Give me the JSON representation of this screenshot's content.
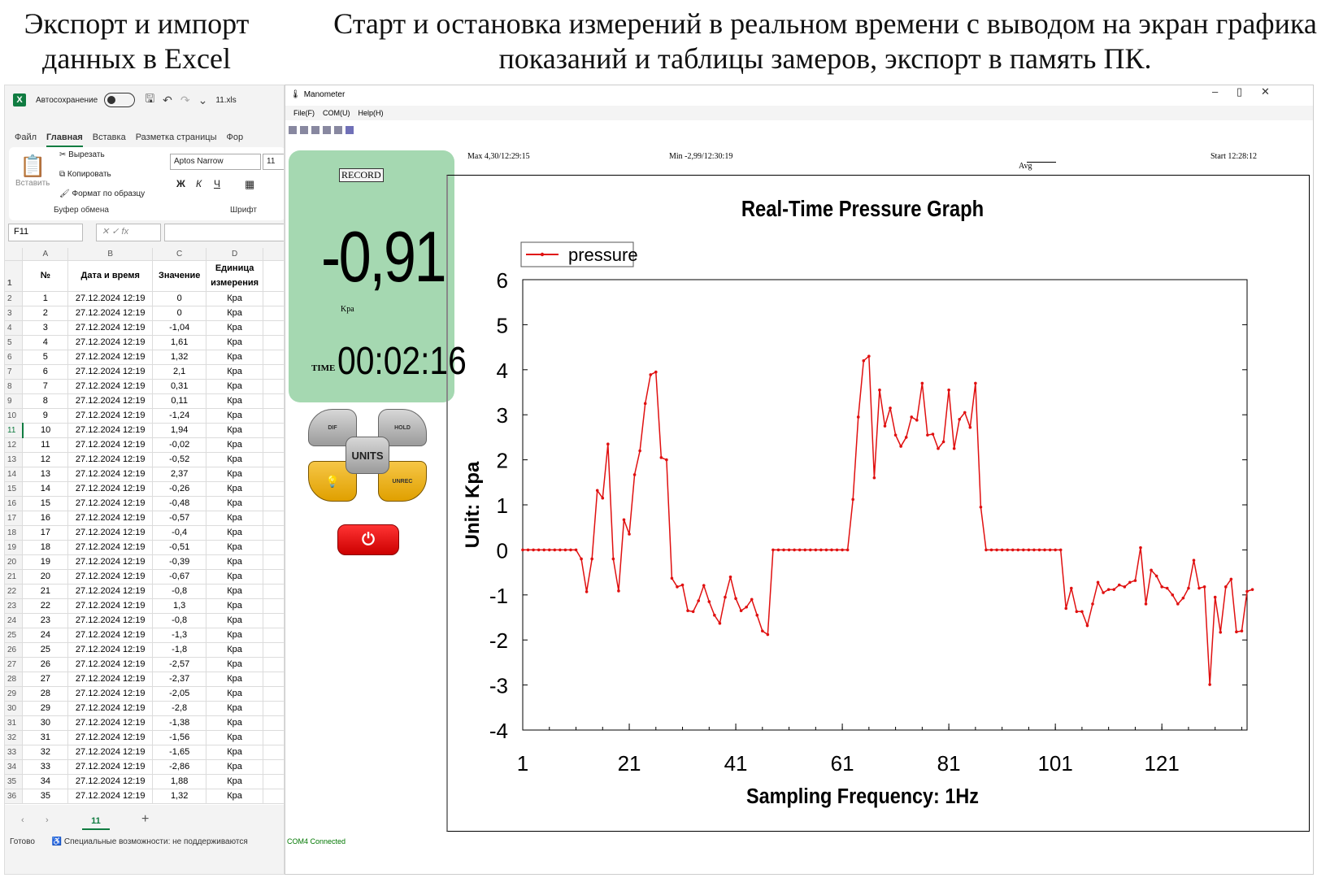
{
  "captions": {
    "left": "Экспорт и импорт данных в Excel",
    "right": "Старт и остановка измерений в реальном времени с выводом на экран графика показаний и таблицы замеров, экспорт в память ПК."
  },
  "excel": {
    "autosave_label": "Автосохранение",
    "filename": "11.xls",
    "tabs": [
      "Файл",
      "Главная",
      "Вставка",
      "Разметка страницы",
      "Фор"
    ],
    "ribbon": {
      "paste": "Вставить",
      "cut": "Вырезать",
      "copy": "Копировать",
      "format_painter": "Формат по образцу",
      "clipboard_group": "Буфер обмена",
      "font_name": "Aptos Narrow",
      "font_size": "11",
      "font_group": "Шрифт",
      "bold": "Ж",
      "italic": "К",
      "underline": "Ч"
    },
    "name_box": "F11",
    "fx": "fx",
    "columns": [
      "A",
      "B",
      "C",
      "D"
    ],
    "headers": [
      "№",
      "Дата и время",
      "Значение",
      "Единица измерения"
    ],
    "rows": [
      [
        "1",
        "27.12.2024 12:19",
        "0",
        "Кра"
      ],
      [
        "2",
        "27.12.2024 12:19",
        "0",
        "Кра"
      ],
      [
        "3",
        "27.12.2024 12:19",
        "-1,04",
        "Кра"
      ],
      [
        "4",
        "27.12.2024 12:19",
        "1,61",
        "Кра"
      ],
      [
        "5",
        "27.12.2024 12:19",
        "1,32",
        "Кра"
      ],
      [
        "6",
        "27.12.2024 12:19",
        "2,1",
        "Кра"
      ],
      [
        "7",
        "27.12.2024 12:19",
        "0,31",
        "Кра"
      ],
      [
        "8",
        "27.12.2024 12:19",
        "0,11",
        "Кра"
      ],
      [
        "9",
        "27.12.2024 12:19",
        "-1,24",
        "Кра"
      ],
      [
        "10",
        "27.12.2024 12:19",
        "1,94",
        "Кра"
      ],
      [
        "11",
        "27.12.2024 12:19",
        "-0,02",
        "Кра"
      ],
      [
        "12",
        "27.12.2024 12:19",
        "-0,52",
        "Кра"
      ],
      [
        "13",
        "27.12.2024 12:19",
        "2,37",
        "Кра"
      ],
      [
        "14",
        "27.12.2024 12:19",
        "-0,26",
        "Кра"
      ],
      [
        "15",
        "27.12.2024 12:19",
        "-0,48",
        "Кра"
      ],
      [
        "16",
        "27.12.2024 12:19",
        "-0,57",
        "Кра"
      ],
      [
        "17",
        "27.12.2024 12:19",
        "-0,4",
        "Кра"
      ],
      [
        "18",
        "27.12.2024 12:19",
        "-0,51",
        "Кра"
      ],
      [
        "19",
        "27.12.2024 12:19",
        "-0,39",
        "Кра"
      ],
      [
        "20",
        "27.12.2024 12:19",
        "-0,67",
        "Кра"
      ],
      [
        "21",
        "27.12.2024 12:19",
        "-0,8",
        "Кра"
      ],
      [
        "22",
        "27.12.2024 12:19",
        "1,3",
        "Кра"
      ],
      [
        "23",
        "27.12.2024 12:19",
        "-0,8",
        "Кра"
      ],
      [
        "24",
        "27.12.2024 12:19",
        "-1,3",
        "Кра"
      ],
      [
        "25",
        "27.12.2024 12:19",
        "-1,8",
        "Кра"
      ],
      [
        "26",
        "27.12.2024 12:19",
        "-2,57",
        "Кра"
      ],
      [
        "27",
        "27.12.2024 12:19",
        "-2,37",
        "Кра"
      ],
      [
        "28",
        "27.12.2024 12:19",
        "-2,05",
        "Кра"
      ],
      [
        "29",
        "27.12.2024 12:19",
        "-2,8",
        "Кра"
      ],
      [
        "30",
        "27.12.2024 12:19",
        "-1,38",
        "Кра"
      ],
      [
        "31",
        "27.12.2024 12:19",
        "-1,56",
        "Кра"
      ],
      [
        "32",
        "27.12.2024 12:19",
        "-1,65",
        "Кра"
      ],
      [
        "33",
        "27.12.2024 12:19",
        "-2,86",
        "Кра"
      ],
      [
        "34",
        "27.12.2024 12:19",
        "1,88",
        "Кра"
      ],
      [
        "35",
        "27.12.2024 12:19",
        "1,32",
        "Кра"
      ]
    ],
    "sheet_tab": "11",
    "status_ready": "Готово",
    "status_access": "Специальные возможности: не поддерживаются"
  },
  "manometer": {
    "title": "Manometer",
    "menu": [
      "File(F)",
      "COM(U)",
      "Help(H)"
    ],
    "record_label": "RECORD",
    "reading": "-0,91",
    "unit": "Kpa",
    "time_label": "TIME",
    "time": "00:02:16",
    "buttons": {
      "dif": "DIF",
      "hold": "HOLD",
      "units": "UNITS",
      "unrec": "UNREC"
    },
    "stats": {
      "max": "Max  4,30/12:29:15",
      "min": "Min  -2,99/12:30:19",
      "avg": "Avg",
      "start": "Start  12:28:12"
    },
    "status": "COM4 Connected",
    "colors": {
      "panel": "#a5d8b1",
      "line": "#e01010"
    }
  },
  "chart_data": {
    "type": "line",
    "title": "Real-Time Pressure Graph",
    "xlabel": "Sampling  Frequency: 1Hz",
    "ylabel": "Unit: Kpa",
    "xlim": [
      1,
      137
    ],
    "ylim": [
      -4,
      6
    ],
    "xticks": [
      1,
      21,
      41,
      61,
      81,
      101,
      121
    ],
    "yticks": [
      6,
      5,
      4,
      3,
      2,
      1,
      0,
      -1,
      -2,
      -3,
      -4
    ],
    "legend_position": "top-left",
    "series": [
      {
        "name": "pressure",
        "color": "#e01010",
        "values": [
          0,
          0,
          0,
          0,
          0,
          0,
          0,
          0,
          0,
          0,
          0,
          -0.2,
          -0.93,
          -0.2,
          1.32,
          1.15,
          2.35,
          -0.2,
          -0.91,
          0.67,
          0.35,
          1.67,
          2.2,
          3.25,
          3.89,
          3.95,
          2.05,
          2.0,
          -0.63,
          -0.82,
          -0.78,
          -1.35,
          -1.37,
          -1.13,
          -0.79,
          -1.15,
          -1.45,
          -1.63,
          -1.05,
          -0.6,
          -1.08,
          -1.35,
          -1.27,
          -1.1,
          -1.45,
          -1.8,
          -1.88,
          0,
          0,
          0,
          0,
          0,
          0,
          0,
          0,
          0,
          0,
          0,
          0,
          0,
          0,
          0,
          1.12,
          2.95,
          4.2,
          4.3,
          1.6,
          3.55,
          2.75,
          3.15,
          2.55,
          2.3,
          2.5,
          2.95,
          2.88,
          3.7,
          2.55,
          2.57,
          2.25,
          2.4,
          3.55,
          2.25,
          2.9,
          3.05,
          2.72,
          3.7,
          0.95,
          0,
          0,
          0,
          0,
          0,
          0,
          0,
          0,
          0,
          0,
          0,
          0,
          0,
          0,
          0,
          -1.3,
          -0.85,
          -1.37,
          -1.37,
          -1.68,
          -1.2,
          -0.72,
          -0.95,
          -0.88,
          -0.88,
          -0.78,
          -0.82,
          -0.72,
          -0.68,
          0.05,
          -1.2,
          -0.45,
          -0.58,
          -0.82,
          -0.85,
          -1.0,
          -1.2,
          -1.07,
          -0.85,
          -0.23,
          -0.85,
          -0.82,
          -2.99,
          -1.05,
          -1.83,
          -0.82,
          -0.65,
          -1.82,
          -1.8,
          -0.92,
          -0.88
        ]
      }
    ]
  }
}
